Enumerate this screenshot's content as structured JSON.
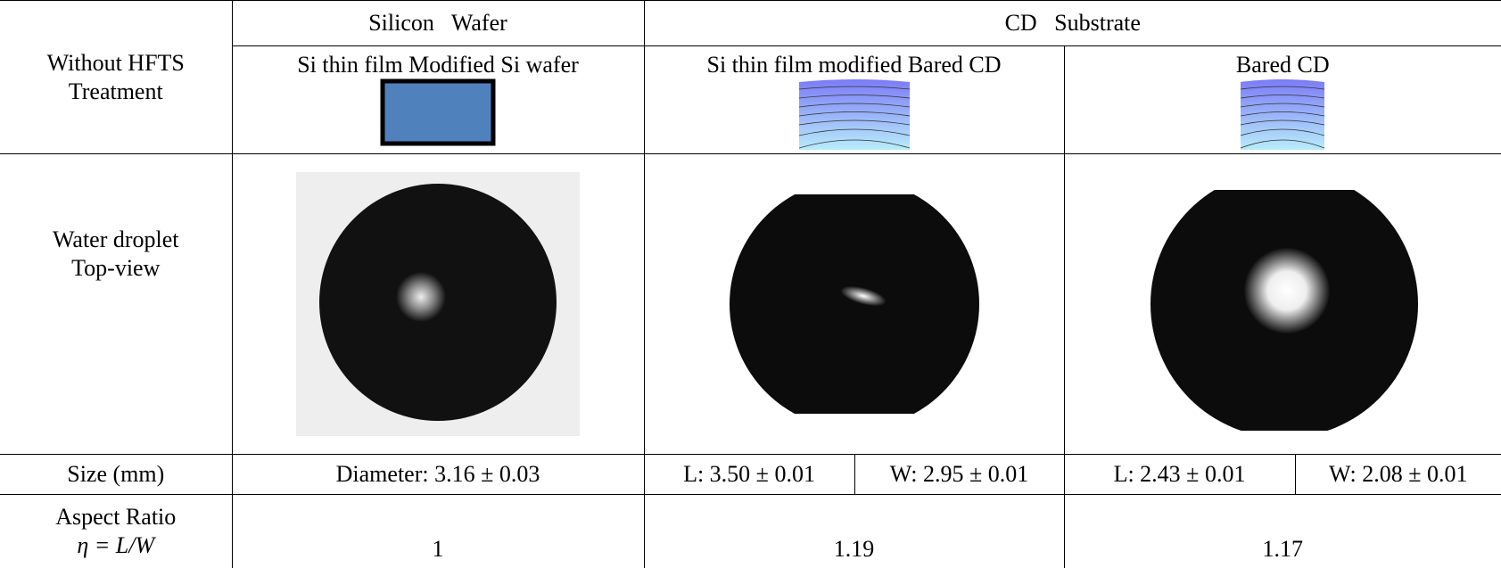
{
  "header": {
    "corner": "Without HFTS Treatment",
    "groups": [
      "Silicon   Wafer",
      "CD   Substrate"
    ],
    "samples": [
      "Si thin film Modified Si wafer",
      "Si thin film modified Bared CD",
      "Bared CD"
    ]
  },
  "rows": [
    {
      "label": "Water droplet Top-view"
    },
    {
      "label": "Size (mm)",
      "cells": [
        "Diameter: 3.16 ± 0.03",
        "L: 3.50 ± 0.01",
        "W: 2.95 ± 0.01",
        "L: 2.43 ± 0.01",
        "W: 2.08 ± 0.01"
      ]
    },
    {
      "label": "Aspect Ratio",
      "formula": "η = L/W",
      "cells": [
        "1",
        "1.19",
        "1.17"
      ]
    }
  ]
}
